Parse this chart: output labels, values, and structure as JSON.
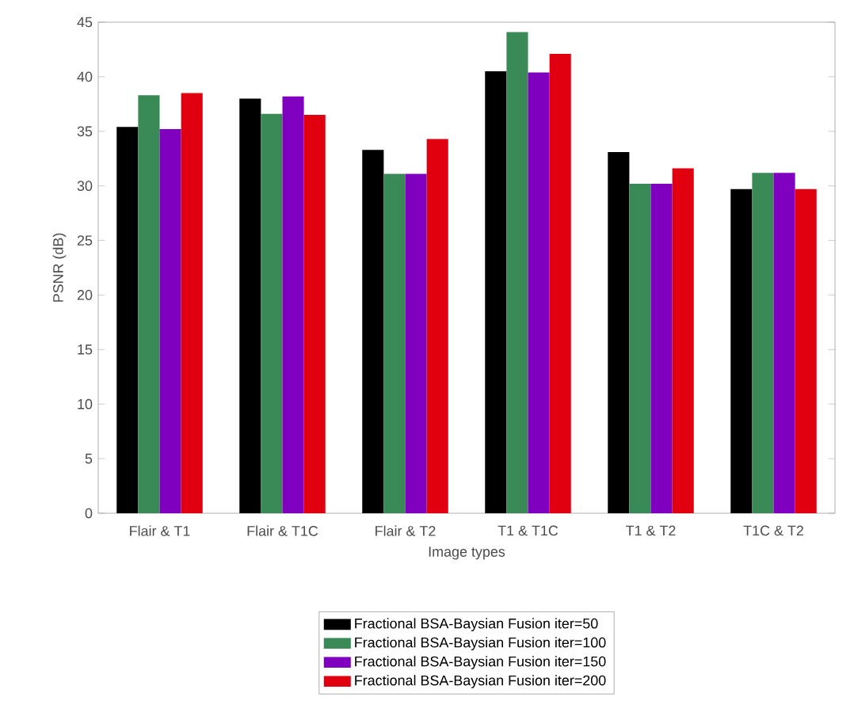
{
  "chart_data": {
    "type": "bar",
    "xlabel": "Image types",
    "ylabel": "PSNR (dB)",
    "categories": [
      "Flair & T1",
      "Flair & T1C",
      "Flair & T2",
      "T1 & T1C",
      "T1 & T2",
      "T1C & T2"
    ],
    "series": [
      {
        "name": "Fractional BSA-Baysian Fusion iter=50",
        "color": "#000000",
        "values": [
          35.4,
          38.0,
          33.3,
          40.5,
          33.1,
          29.7
        ]
      },
      {
        "name": "Fractional BSA-Baysian Fusion iter=100",
        "color": "#3a8a57",
        "values": [
          38.3,
          36.6,
          31.1,
          44.1,
          30.2,
          31.2
        ]
      },
      {
        "name": "Fractional BSA-Baysian Fusion iter=150",
        "color": "#8000c0",
        "values": [
          35.2,
          38.2,
          31.1,
          40.4,
          30.2,
          31.2
        ]
      },
      {
        "name": "Fractional BSA-Baysian Fusion iter=200",
        "color": "#e00010",
        "values": [
          38.5,
          36.5,
          34.3,
          42.1,
          31.6,
          29.7
        ]
      }
    ],
    "ylim": [
      0,
      45
    ],
    "yticks": [
      0,
      5,
      10,
      15,
      20,
      25,
      30,
      35,
      40,
      45
    ],
    "grid": false,
    "legend": "bottom"
  }
}
